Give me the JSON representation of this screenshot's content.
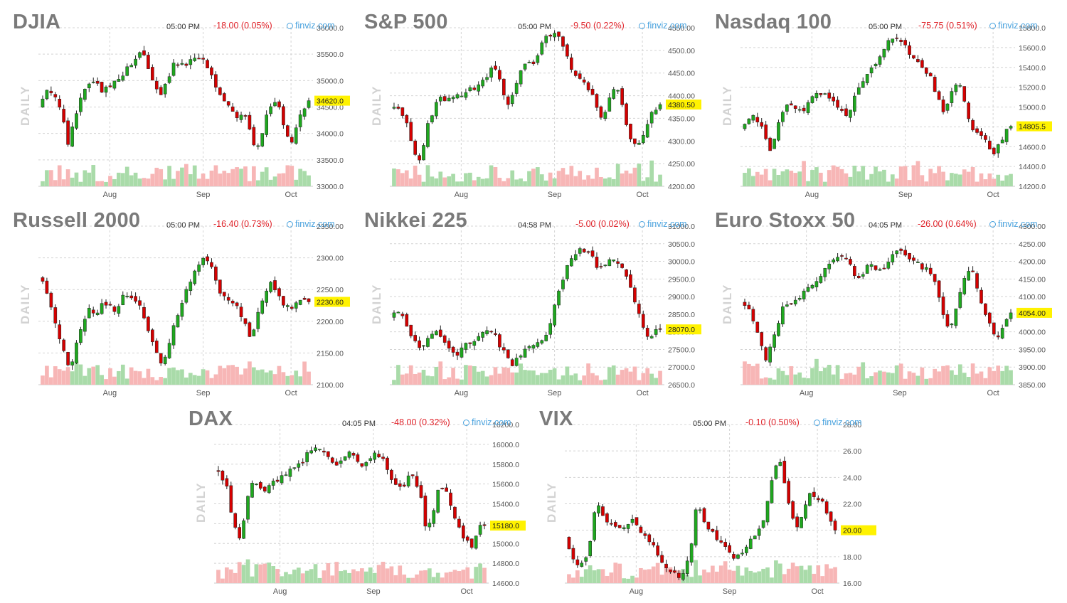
{
  "chart_data": [
    {
      "type": "candlestick",
      "title": "DJIA",
      "time": "05:00 PM",
      "change": "-18.00 (0.05%)",
      "brand": "finviz.com",
      "ylabel": "DAILY",
      "ylim": [
        33000,
        36000
      ],
      "yticks": [
        "36000.0",
        "35500.0",
        "35000.0",
        "34500.0",
        "34000.0",
        "33500.0",
        "33000.0"
      ],
      "ytick_values": [
        36000,
        35500,
        35000,
        34500,
        34000,
        33500,
        33000
      ],
      "xticks": [
        "Aug",
        "Sep",
        "Oct"
      ],
      "xtick_positions": [
        0.26,
        0.6,
        0.92
      ],
      "last": 34620,
      "last_label": "34620.0",
      "path": [
        34500,
        34750,
        34800,
        34700,
        34350,
        33750,
        34200,
        34650,
        34850,
        34950,
        34900,
        34800,
        34900,
        34950,
        35000,
        35200,
        35350,
        35500,
        35450,
        35150,
        34900,
        34700,
        35050,
        35300,
        35350,
        35300,
        35400,
        35450,
        35400,
        35200,
        34950,
        34700,
        34500,
        34450,
        34300,
        34450,
        34050,
        33600,
        34000,
        34400,
        34650,
        34500,
        34050,
        33800,
        34200,
        34400,
        34620
      ]
    },
    {
      "type": "candlestick",
      "title": "S&P 500",
      "time": "05:00 PM",
      "change": "-9.50 (0.22%)",
      "brand": "finviz.com",
      "ylabel": "DAILY",
      "ylim": [
        4200,
        4550
      ],
      "yticks": [
        "4550.00",
        "4500.00",
        "4450.00",
        "4400.00",
        "4350.00",
        "4300.00",
        "4250.00",
        "4200.00"
      ],
      "ytick_values": [
        4550,
        4500,
        4450,
        4400,
        4350,
        4300,
        4250,
        4200
      ],
      "xticks": [
        "Aug",
        "Sep",
        "Oct"
      ],
      "xtick_positions": [
        0.26,
        0.6,
        0.92
      ],
      "last": 4380.5,
      "last_label": "4380.50",
      "path": [
        4370,
        4380,
        4365,
        4330,
        4280,
        4250,
        4320,
        4360,
        4400,
        4395,
        4390,
        4400,
        4405,
        4410,
        4415,
        4430,
        4440,
        4460,
        4455,
        4400,
        4380,
        4430,
        4460,
        4480,
        4470,
        4510,
        4530,
        4540,
        4530,
        4510,
        4470,
        4440,
        4440,
        4420,
        4390,
        4350,
        4360,
        4420,
        4410,
        4360,
        4310,
        4290,
        4300,
        4340,
        4370,
        4380
      ]
    },
    {
      "type": "candlestick",
      "title": "Nasdaq 100",
      "time": "05:00 PM",
      "change": "-75.75 (0.51%)",
      "brand": "finviz.com",
      "ylabel": "DAILY",
      "ylim": [
        14200,
        15800
      ],
      "yticks": [
        "15800.0",
        "15600.0",
        "15400.0",
        "15200.0",
        "15000.0",
        "14800.0",
        "14600.0",
        "14400.0",
        "14200.0"
      ],
      "ytick_values": [
        15800,
        15600,
        15400,
        15200,
        15000,
        14800,
        14600,
        14400,
        14200
      ],
      "xticks": [
        "Aug",
        "Sep",
        "Oct"
      ],
      "xtick_positions": [
        0.26,
        0.6,
        0.92
      ],
      "last": 14805.5,
      "last_label": "14805.5",
      "path": [
        14800,
        14850,
        14900,
        14850,
        14700,
        14550,
        14800,
        14950,
        15050,
        15000,
        14950,
        15050,
        15100,
        15150,
        15100,
        15050,
        15000,
        14900,
        15000,
        15150,
        15250,
        15400,
        15450,
        15550,
        15650,
        15700,
        15650,
        15600,
        15500,
        15450,
        15350,
        15300,
        15100,
        14950,
        15100,
        15250,
        15200,
        14900,
        14750,
        14700,
        14650,
        14500,
        14600,
        14750,
        14805
      ]
    },
    {
      "type": "candlestick",
      "title": "Russell 2000",
      "time": "05:00 PM",
      "change": "-16.40 (0.73%)",
      "brand": "finviz.com",
      "ylabel": "DAILY",
      "ylim": [
        2100,
        2350
      ],
      "yticks": [
        "2350.00",
        "2300.00",
        "2250.00",
        "2200.00",
        "2150.00",
        "2100.00"
      ],
      "ytick_values": [
        2350,
        2300,
        2250,
        2200,
        2150,
        2100
      ],
      "xticks": [
        "Aug",
        "Sep",
        "Oct"
      ],
      "xtick_positions": [
        0.26,
        0.6,
        0.92
      ],
      "last": 2230.6,
      "last_label": "2230.60",
      "path": [
        2270,
        2260,
        2220,
        2180,
        2150,
        2120,
        2170,
        2200,
        2220,
        2210,
        2230,
        2225,
        2215,
        2240,
        2245,
        2235,
        2220,
        2190,
        2160,
        2130,
        2150,
        2190,
        2220,
        2250,
        2270,
        2290,
        2300,
        2280,
        2250,
        2240,
        2235,
        2220,
        2200,
        2170,
        2210,
        2240,
        2260,
        2245,
        2230,
        2220,
        2230,
        2240,
        2230
      ]
    },
    {
      "type": "candlestick",
      "title": "Nikkei 225",
      "time": "04:58 PM",
      "change": "-5.00 (0.02%)",
      "brand": "finviz.com",
      "ylabel": "DAILY",
      "ylim": [
        26500,
        31000
      ],
      "yticks": [
        "31000.0",
        "30500.0",
        "30000.0",
        "29500.0",
        "29000.0",
        "28500.0",
        "28000.0",
        "27500.0",
        "27000.0",
        "26500.0"
      ],
      "ytick_values": [
        31000,
        30500,
        30000,
        29500,
        29000,
        28500,
        28000,
        27500,
        27000,
        26500
      ],
      "xticks": [
        "Aug",
        "Sep",
        "Oct"
      ],
      "xtick_positions": [
        0.26,
        0.6,
        0.92
      ],
      "last": 28070,
      "last_label": "28070.0",
      "path": [
        28400,
        28600,
        28500,
        28100,
        27700,
        27500,
        27800,
        28000,
        27900,
        27700,
        27500,
        27400,
        27600,
        27700,
        27800,
        28000,
        28100,
        27900,
        27600,
        27300,
        27100,
        27300,
        27500,
        27600,
        27700,
        27800,
        28200,
        28800,
        29400,
        29900,
        30200,
        30400,
        30300,
        30100,
        29800,
        29900,
        30100,
        30000,
        29800,
        29400,
        28800,
        28200,
        27800,
        28000,
        28070
      ]
    },
    {
      "type": "candlestick",
      "title": "Euro Stoxx 50",
      "time": "04:05 PM",
      "change": "-26.00 (0.64%)",
      "brand": "finviz.com",
      "ylabel": "DAILY",
      "ylim": [
        3850,
        4300
      ],
      "yticks": [
        "4300.00",
        "4250.00",
        "4200.00",
        "4150.00",
        "4100.00",
        "4050.00",
        "4000.00",
        "3950.00",
        "3900.00",
        "3850.00"
      ],
      "ytick_values": [
        4300,
        4250,
        4200,
        4150,
        4100,
        4050,
        4000,
        3950,
        3900,
        3850
      ],
      "xticks": [
        "Aug",
        "Sep",
        "Oct"
      ],
      "xtick_positions": [
        0.24,
        0.58,
        0.92
      ],
      "last": 4054,
      "last_label": "4054.00",
      "path": [
        4080,
        4070,
        4040,
        3980,
        3920,
        3960,
        4020,
        4070,
        4080,
        4090,
        4110,
        4120,
        4140,
        4160,
        4180,
        4200,
        4220,
        4210,
        4180,
        4150,
        4170,
        4190,
        4180,
        4170,
        4200,
        4230,
        4240,
        4220,
        4200,
        4190,
        4180,
        4160,
        4120,
        4050,
        4000,
        4060,
        4130,
        4180,
        4160,
        4100,
        4040,
        4000,
        3990,
        4030,
        4054
      ]
    },
    {
      "type": "candlestick",
      "title": "DAX",
      "time": "04:05 PM",
      "change": "-48.00 (0.32%)",
      "brand": "finviz.com",
      "ylabel": "DAILY",
      "ylim": [
        14600,
        16200
      ],
      "yticks": [
        "16200.0",
        "16000.0",
        "15800.0",
        "15600.0",
        "15400.0",
        "15200.0",
        "15000.0",
        "14800.0",
        "14600.0"
      ],
      "ytick_values": [
        16200,
        16000,
        15800,
        15600,
        15400,
        15200,
        15000,
        14800,
        14600
      ],
      "xticks": [
        "Aug",
        "Sep",
        "Oct"
      ],
      "xtick_positions": [
        0.24,
        0.58,
        0.92
      ],
      "last": 15180,
      "last_label": "15180.0",
      "path": [
        15750,
        15700,
        15550,
        15200,
        15050,
        15400,
        15600,
        15580,
        15550,
        15600,
        15650,
        15700,
        15750,
        15800,
        15850,
        15950,
        15980,
        15900,
        15850,
        15800,
        15880,
        15900,
        15850,
        15800,
        15850,
        15900,
        15880,
        15750,
        15600,
        15550,
        15650,
        15700,
        15500,
        15100,
        15300,
        15600,
        15550,
        15300,
        15150,
        15050,
        14950,
        15150,
        15180
      ]
    },
    {
      "type": "candlestick",
      "title": "VIX",
      "time": "05:00 PM",
      "change": "-0.10 (0.50%)",
      "brand": "finviz.com",
      "ylabel": "DAILY",
      "ylim": [
        16,
        28
      ],
      "yticks": [
        "28.00",
        "26.00",
        "24.00",
        "22.00",
        "20.00",
        "18.00",
        "16.00"
      ],
      "ytick_values": [
        28,
        26,
        24,
        22,
        20,
        18,
        16
      ],
      "xticks": [
        "Aug",
        "Sep",
        "Oct"
      ],
      "xtick_positions": [
        0.26,
        0.6,
        0.92
      ],
      "last": 20.0,
      "last_label": "20.00",
      "path": [
        19.5,
        18.0,
        17.3,
        17.5,
        19.0,
        22.5,
        21.0,
        20.5,
        20.2,
        20.0,
        20.3,
        21.0,
        20.0,
        19.5,
        19.0,
        18.0,
        17.3,
        16.8,
        16.5,
        17.0,
        18.5,
        22.0,
        21.0,
        20.0,
        19.5,
        19.0,
        18.5,
        18.0,
        18.2,
        19.0,
        19.5,
        20.0,
        21.5,
        24.0,
        25.5,
        23.5,
        21.0,
        20.0,
        21.5,
        23.0,
        22.5,
        22.0,
        21.0,
        20.0
      ]
    }
  ]
}
